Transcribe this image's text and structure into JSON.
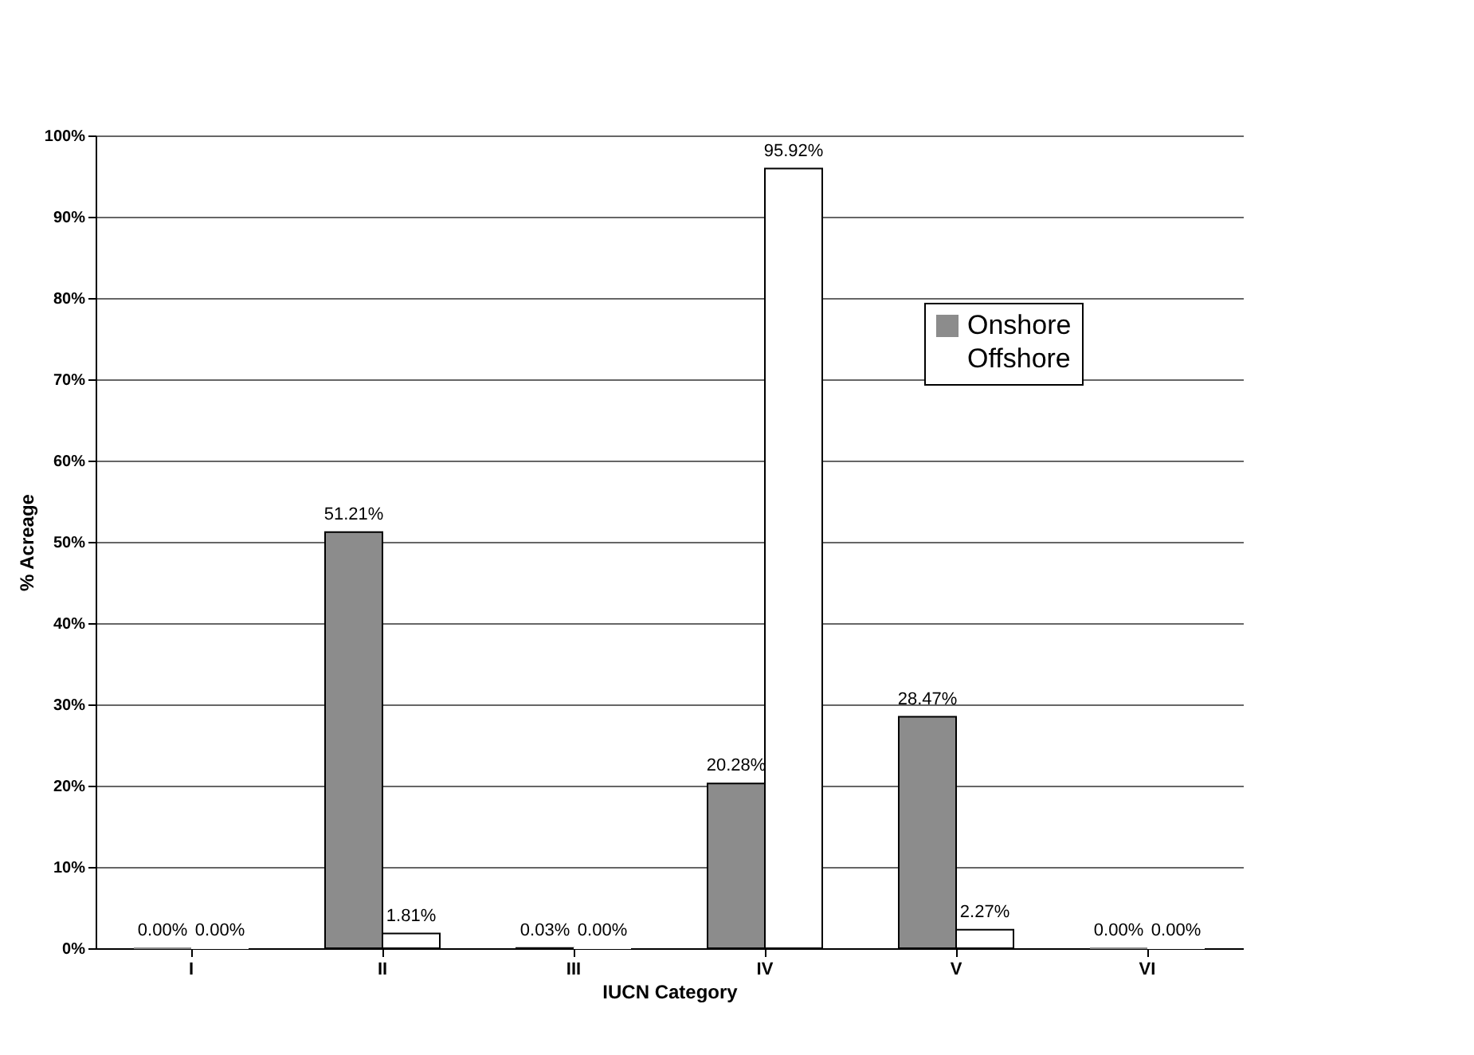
{
  "chart_data": {
    "type": "bar",
    "xlabel": "IUCN Category",
    "ylabel": "% Acreage",
    "categories": [
      "I",
      "II",
      "III",
      "IV",
      "V",
      "VI"
    ],
    "series": [
      {
        "name": "Onshore",
        "color": "#8c8c8c",
        "values": [
          0.0,
          51.21,
          0.03,
          20.28,
          28.47,
          0.0
        ],
        "value_labels": [
          "0.00%",
          "51.21%",
          "0.03%",
          "20.28%",
          "28.47%",
          "0.00%"
        ]
      },
      {
        "name": "Offshore",
        "color": "#ffffff",
        "values": [
          0.0,
          1.81,
          0.0,
          95.92,
          2.27,
          0.0
        ],
        "value_labels": [
          "0.00%",
          "1.81%",
          "0.00%",
          "95.92%",
          "2.27%",
          "0.00%"
        ]
      }
    ],
    "ylim": [
      0,
      100
    ],
    "yticks": [
      {
        "value": 0,
        "label": "0%"
      },
      {
        "value": 10,
        "label": "10%"
      },
      {
        "value": 20,
        "label": "20%"
      },
      {
        "value": 30,
        "label": "30%"
      },
      {
        "value": 40,
        "label": "40%"
      },
      {
        "value": 50,
        "label": "50%"
      },
      {
        "value": 60,
        "label": "60%"
      },
      {
        "value": 70,
        "label": "70%"
      },
      {
        "value": 80,
        "label": "80%"
      },
      {
        "value": 90,
        "label": "90%"
      },
      {
        "value": 100,
        "label": "100%"
      }
    ],
    "grid": "y",
    "legend": "right"
  }
}
